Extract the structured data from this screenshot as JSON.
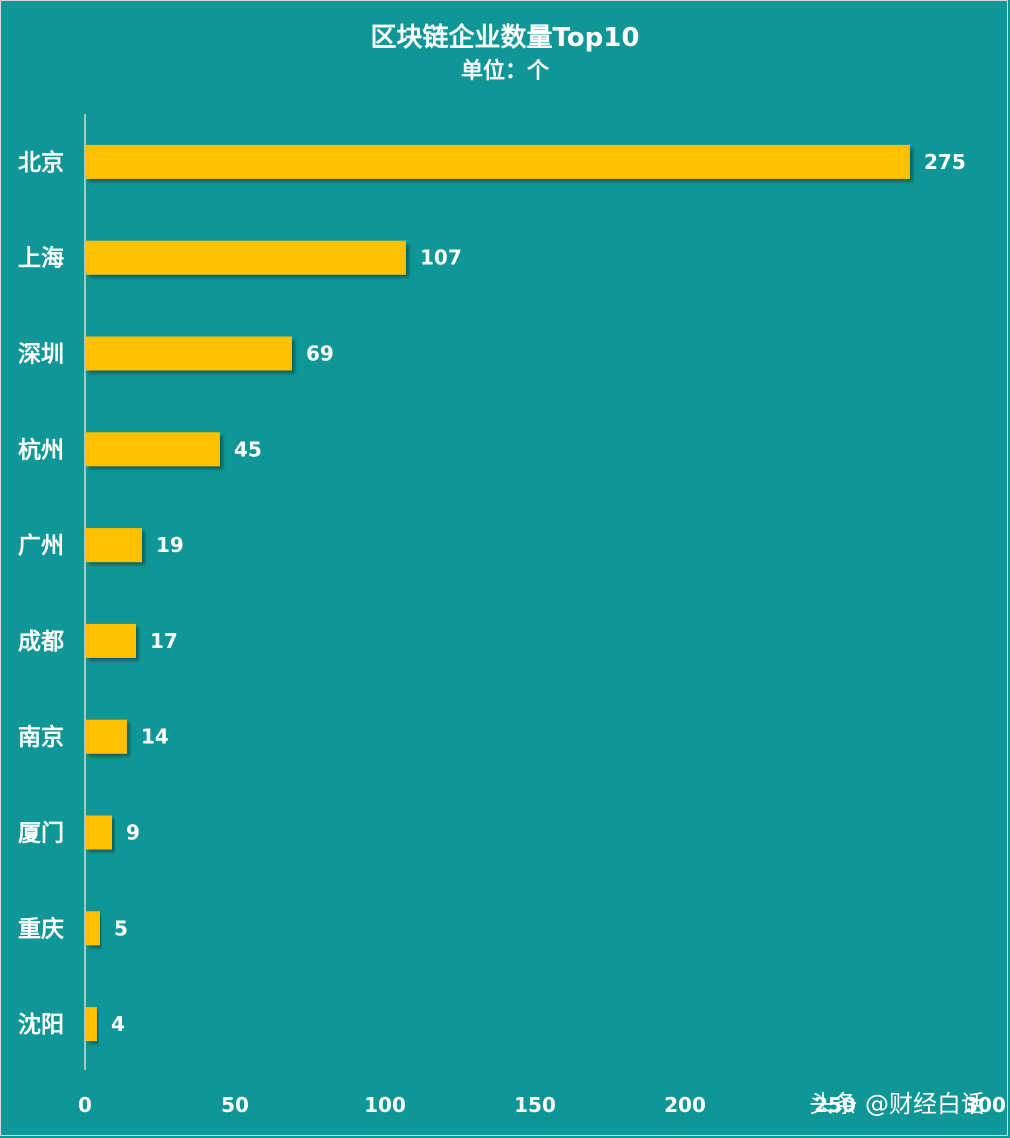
{
  "chart_data": {
    "type": "bar",
    "orientation": "horizontal",
    "title": "区块链企业数量Top10",
    "subtitle": "单位：个",
    "categories": [
      "北京",
      "上海",
      "深圳",
      "杭州",
      "广州",
      "成都",
      "南京",
      "厦门",
      "重庆",
      "沈阳"
    ],
    "values": [
      275,
      107,
      69,
      45,
      19,
      17,
      14,
      9,
      5,
      4
    ],
    "xlim": [
      0,
      300
    ],
    "xticks": [
      "0",
      "50",
      "100",
      "150",
      "200",
      "250",
      "300"
    ],
    "grid": false,
    "bar_color": "#ffc000",
    "background_color": "#0e9796"
  },
  "watermark": "头条 @财经白话"
}
